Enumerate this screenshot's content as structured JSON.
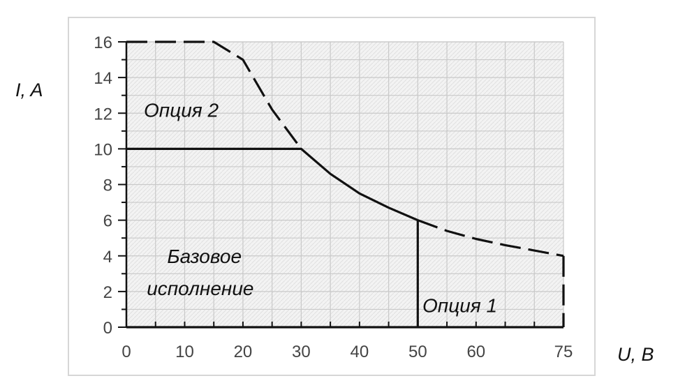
{
  "chart_data": {
    "type": "line",
    "xlabel": "U, B",
    "ylabel": "I, A",
    "xlim": [
      0,
      75
    ],
    "ylim": [
      0,
      16
    ],
    "x_ticks": [
      0,
      10,
      20,
      30,
      40,
      50,
      60,
      75
    ],
    "y_ticks": [
      0,
      2,
      4,
      6,
      8,
      10,
      12,
      14,
      16
    ],
    "grid": true,
    "series": [
      {
        "style": "dashed",
        "color": "#111111",
        "points": [
          [
            0,
            16
          ],
          [
            15,
            16
          ],
          [
            20,
            15
          ],
          [
            25,
            12.2
          ],
          [
            30,
            10
          ]
        ]
      },
      {
        "style": "solid",
        "color": "#111111",
        "points": [
          [
            0,
            10
          ],
          [
            30,
            10
          ],
          [
            35,
            8.6
          ],
          [
            40,
            7.5
          ],
          [
            45,
            6.7
          ],
          [
            50,
            6
          ]
        ]
      },
      {
        "style": "dashed",
        "color": "#111111",
        "points": [
          [
            50,
            6
          ],
          [
            55,
            5.4
          ],
          [
            60,
            4.95
          ],
          [
            65,
            4.6
          ],
          [
            70,
            4.3
          ],
          [
            75,
            4
          ]
        ]
      },
      {
        "style": "solid",
        "color": "#111111",
        "points": [
          [
            50,
            6
          ],
          [
            50,
            0
          ]
        ]
      },
      {
        "style": "dashed",
        "color": "#111111",
        "points": [
          [
            75,
            4
          ],
          [
            75,
            0
          ]
        ]
      },
      {
        "style": "solid",
        "color": "#111111",
        "points": [
          [
            0,
            0
          ],
          [
            75,
            0
          ]
        ]
      }
    ],
    "annotations": [
      {
        "text": "Опция 2",
        "x": 3,
        "y": 11.8
      },
      {
        "text": "Базовое",
        "x": 7,
        "y": 3.6
      },
      {
        "text": "исполнение",
        "x": 3.5,
        "y": 1.8
      },
      {
        "text": "Опция 1",
        "x": 50.8,
        "y": 0.85
      }
    ]
  }
}
